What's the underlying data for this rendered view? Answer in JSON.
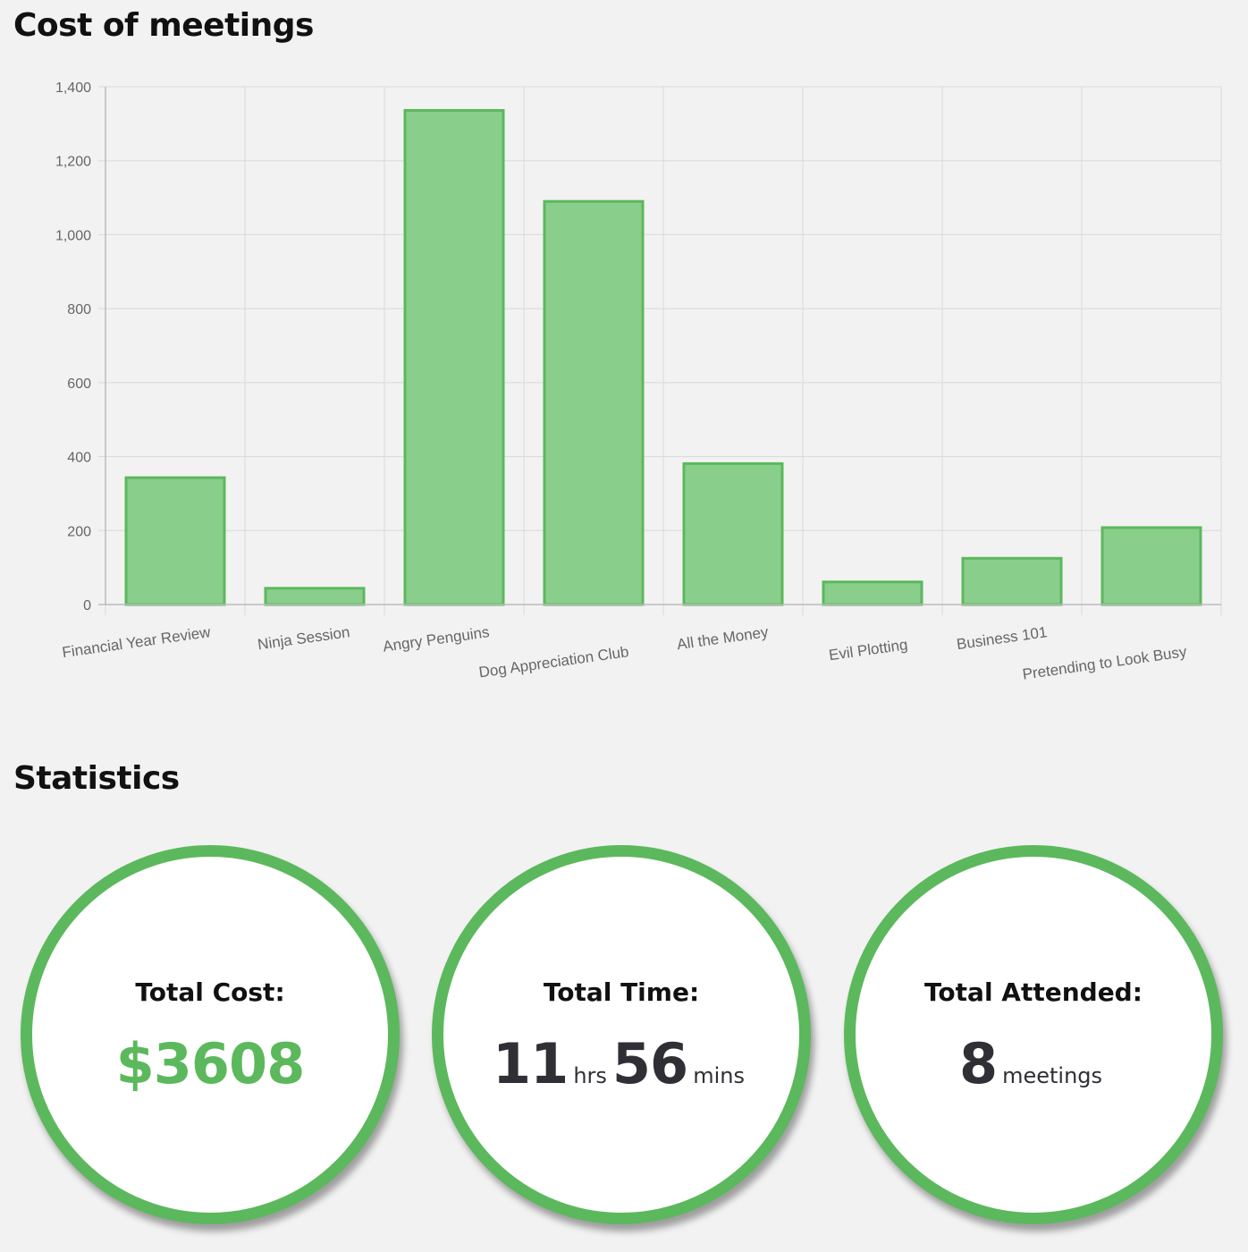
{
  "chart_section": {
    "title": "Cost of meetings"
  },
  "chart_data": {
    "type": "bar",
    "categories": [
      "Financial Year Review",
      "Ninja Session",
      "Angry Penguins",
      "Dog Appreciation Club",
      "All the Money",
      "Evil Plotting",
      "Business 101",
      "Pretending to Look Busy"
    ],
    "values": [
      343,
      44,
      1336,
      1090,
      381,
      61,
      125,
      208
    ],
    "ylim": [
      0,
      1400
    ],
    "yticks": [
      "0",
      "200",
      "400",
      "600",
      "800",
      "1,000",
      "1,200",
      "1,400"
    ],
    "grid": true,
    "colors": {
      "bar_fill": "#8ace8c",
      "bar_border": "#5cb85c",
      "grid": "#d9d9d9",
      "tick_text": "#666666"
    }
  },
  "statistics": {
    "title": "Statistics",
    "total_cost": {
      "label": "Total Cost:",
      "value": "$3608"
    },
    "total_time": {
      "label": "Total Time:",
      "hours": "11",
      "hours_unit": "hrs",
      "minutes": "56",
      "minutes_unit": "mins"
    },
    "total_attended": {
      "label": "Total Attended:",
      "count": "8",
      "unit": "meetings"
    }
  },
  "colors": {
    "accent": "#5cb85c",
    "background": "#f2f2f2",
    "circle_fill": "#ffffff"
  }
}
